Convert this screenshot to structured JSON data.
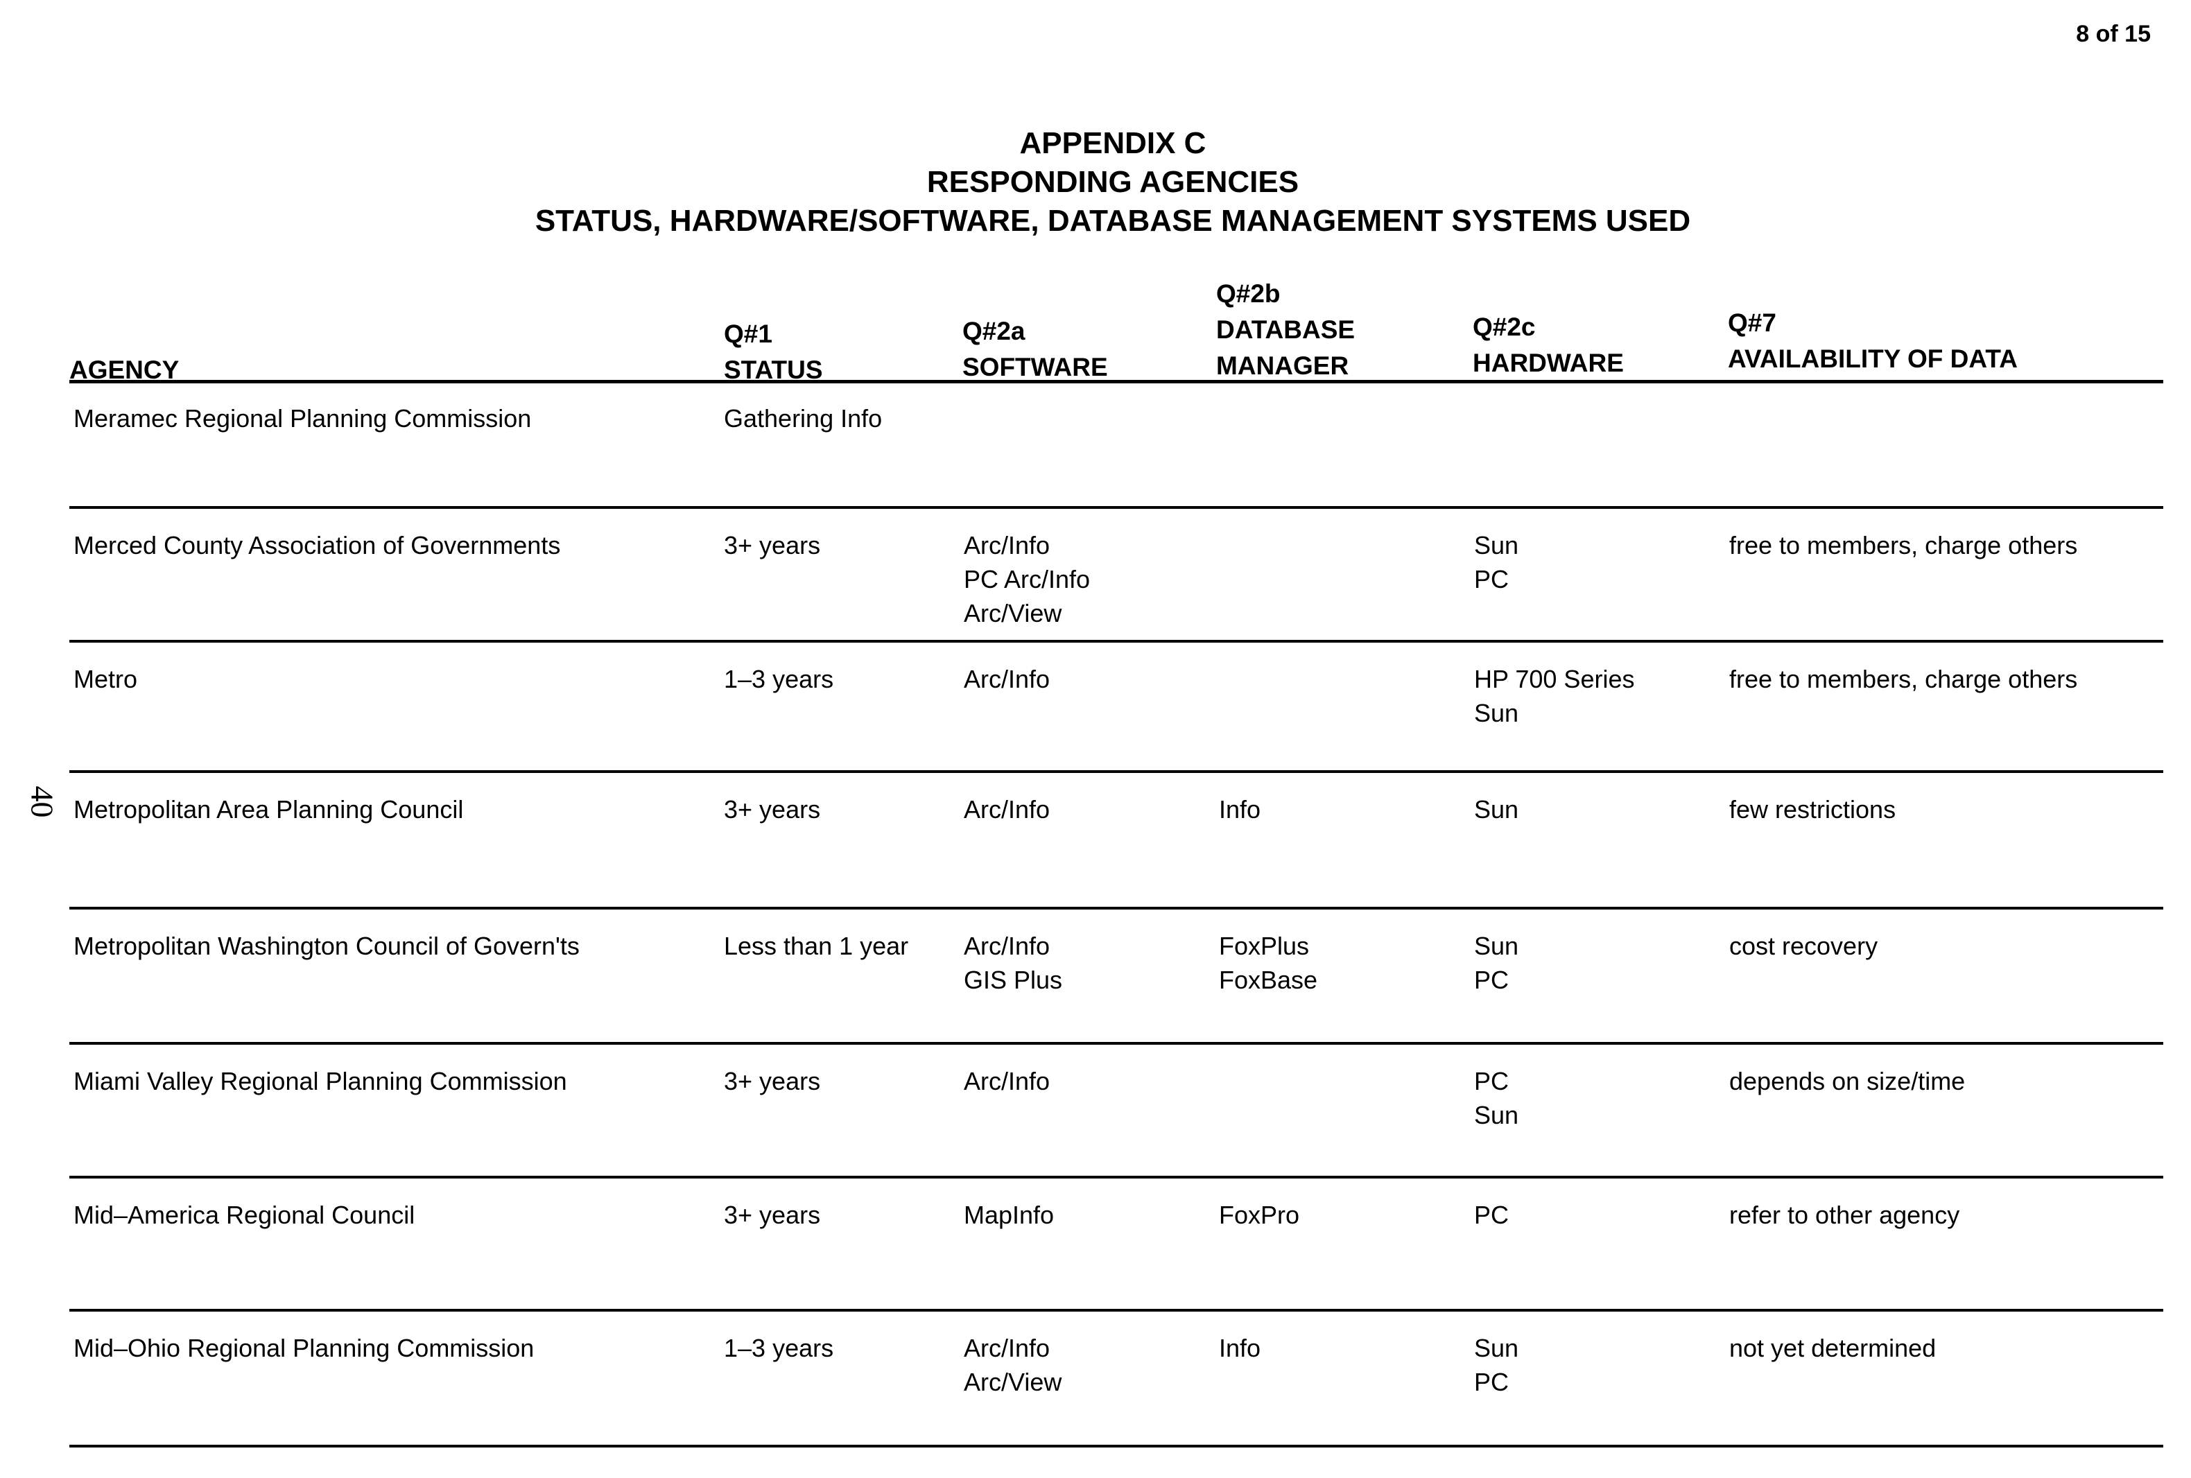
{
  "page_number": "8 of 15",
  "side_page_number": "40",
  "title": [
    "APPENDIX C",
    "RESPONDING AGENCIES",
    "STATUS, HARDWARE/SOFTWARE, DATABASE MANAGEMENT SYSTEMS USED"
  ],
  "columns": [
    {
      "q": "",
      "label": "AGENCY"
    },
    {
      "q": "Q#1",
      "label": "STATUS"
    },
    {
      "q": "Q#2a",
      "label": "SOFTWARE"
    },
    {
      "q": "Q#2b",
      "label": "DATABASE MANAGER"
    },
    {
      "q": "Q#2c",
      "label": "HARDWARE"
    },
    {
      "q": "Q#7",
      "label": "AVAILABILITY OF DATA"
    }
  ],
  "rows": [
    {
      "agency": "Meramec Regional Planning Commission",
      "status": "Gathering Info",
      "software": [],
      "db": [],
      "hardware": [],
      "availability": ""
    },
    {
      "agency": "Merced County  Association of Governments",
      "status": "3+ years",
      "software": [
        "Arc/Info",
        "PC Arc/Info",
        "Arc/View"
      ],
      "db": [],
      "hardware": [
        "Sun",
        "PC"
      ],
      "availability": "free to members, charge others"
    },
    {
      "agency": "Metro",
      "status": "1–3 years",
      "software": [
        "Arc/Info"
      ],
      "db": [],
      "hardware": [
        "HP 700 Series",
        "Sun"
      ],
      "availability": "free to members, charge others"
    },
    {
      "agency": "Metropolitan Area Planning Council",
      "status": "3+ years",
      "software": [
        "Arc/Info"
      ],
      "db": [
        "Info"
      ],
      "hardware": [
        "Sun"
      ],
      "availability": "few restrictions"
    },
    {
      "agency": "Metropolitan Washington Council of Govern'ts",
      "status": "Less than 1 year",
      "software": [
        "Arc/Info",
        "GIS Plus"
      ],
      "db": [
        "FoxPlus",
        "FoxBase"
      ],
      "hardware": [
        "Sun",
        "PC"
      ],
      "availability": "cost recovery"
    },
    {
      "agency": "Miami Valley Regional Planning Commission",
      "status": "3+ years",
      "software": [
        "Arc/Info"
      ],
      "db": [],
      "hardware": [
        "PC",
        "Sun"
      ],
      "availability": "depends on size/time"
    },
    {
      "agency": "Mid–America Regional Council",
      "status": "3+ years",
      "software": [
        "MapInfo"
      ],
      "db": [
        "FoxPro"
      ],
      "hardware": [
        "PC"
      ],
      "availability": "refer to other agency"
    },
    {
      "agency": "Mid–Ohio Regional Planning Commission",
      "status": "1–3 years",
      "software": [
        "Arc/Info",
        "Arc/View"
      ],
      "db": [
        "Info"
      ],
      "hardware": [
        "Sun",
        "PC"
      ],
      "availability": "not yet determined"
    }
  ]
}
